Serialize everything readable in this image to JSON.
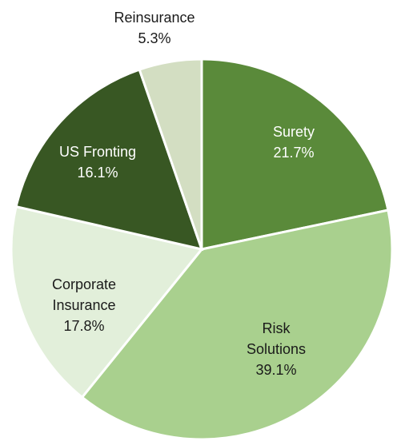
{
  "chart_data": {
    "type": "pie",
    "categories": [
      "Surety",
      "Risk Solutions",
      "Corporate Insurance",
      "US Fronting",
      "Reinsurance"
    ],
    "values": [
      21.7,
      39.1,
      17.8,
      16.1,
      5.3
    ],
    "value_labels": [
      "21.7%",
      "39.1%",
      "17.8%",
      "16.1%",
      "5.3%"
    ],
    "colors": [
      "#5a8a3a",
      "#a9d08e",
      "#e2efda",
      "#385723",
      "#d3dec2"
    ],
    "label_colors": [
      "#ffffff",
      "#1a1a1a",
      "#1a1a1a",
      "#ffffff",
      "#1a1a1a"
    ]
  }
}
